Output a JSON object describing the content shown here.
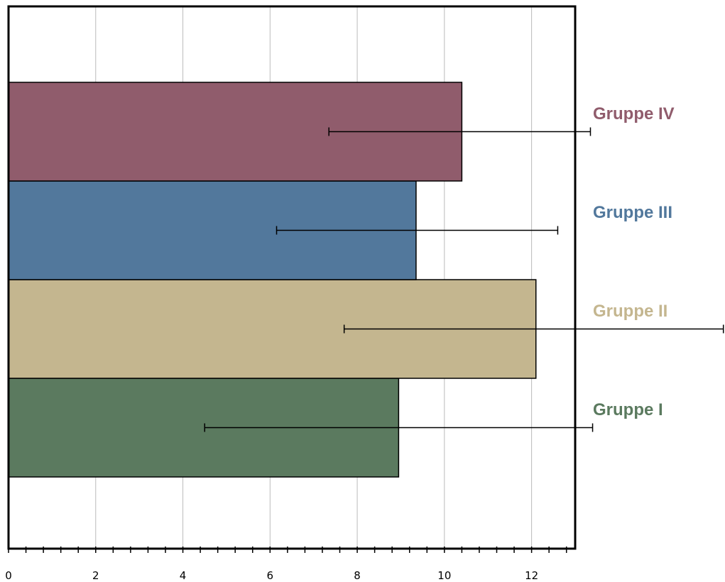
{
  "chart_data": {
    "type": "bar",
    "orientation": "horizontal",
    "categories": [
      "Gruppe I",
      "Gruppe II",
      "Gruppe III",
      "Gruppe IV"
    ],
    "values": [
      8.95,
      12.1,
      9.35,
      10.4
    ],
    "error_low": [
      4.5,
      7.7,
      6.15,
      7.35
    ],
    "error_high": [
      13.4,
      16.4,
      12.6,
      13.35
    ],
    "colors": [
      "#5b7a5f",
      "#c4b68f",
      "#52789c",
      "#905c6c"
    ],
    "xlim": [
      0,
      13
    ],
    "xticks": [
      "0",
      "2",
      "4",
      "6",
      "8",
      "10",
      "12"
    ],
    "grid": true,
    "title": "",
    "xlabel": "",
    "ylabel": ""
  }
}
